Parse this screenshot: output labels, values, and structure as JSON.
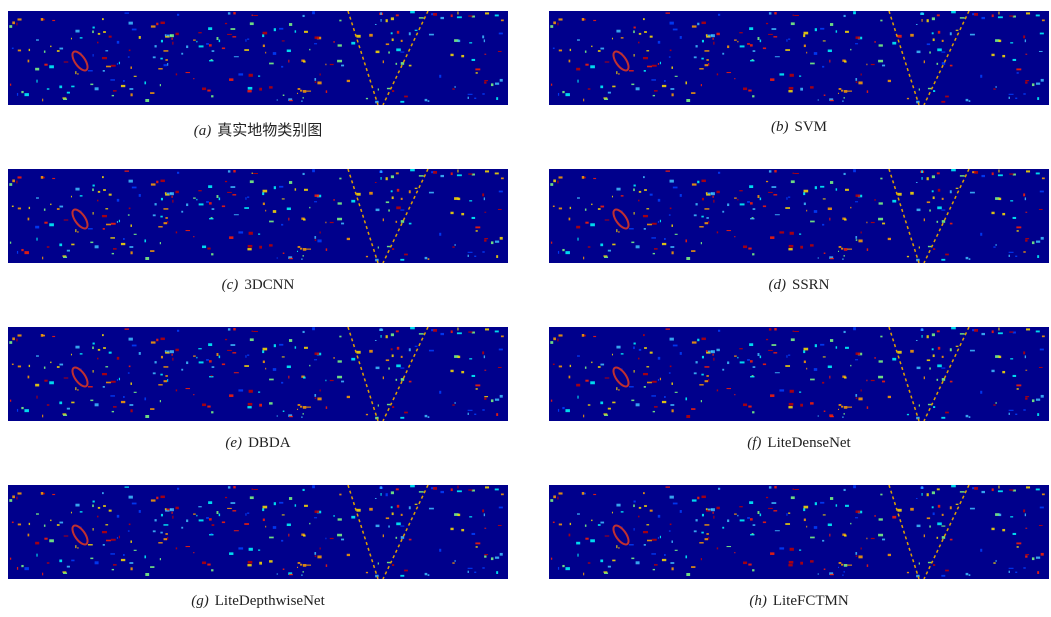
{
  "panels": [
    {
      "label": "(a)",
      "caption": "真实地物类别图"
    },
    {
      "label": "(b)",
      "caption": "SVM"
    },
    {
      "label": "(c)",
      "caption": "3DCNN"
    },
    {
      "label": "(d)",
      "caption": "SSRN"
    },
    {
      "label": "(e)",
      "caption": "DBDA"
    },
    {
      "label": "(f)",
      "caption": "LiteDenseNet"
    },
    {
      "label": "(g)",
      "caption": "LiteDepthwiseNet"
    },
    {
      "label": "(h)",
      "caption": "LiteFCTMN"
    }
  ]
}
